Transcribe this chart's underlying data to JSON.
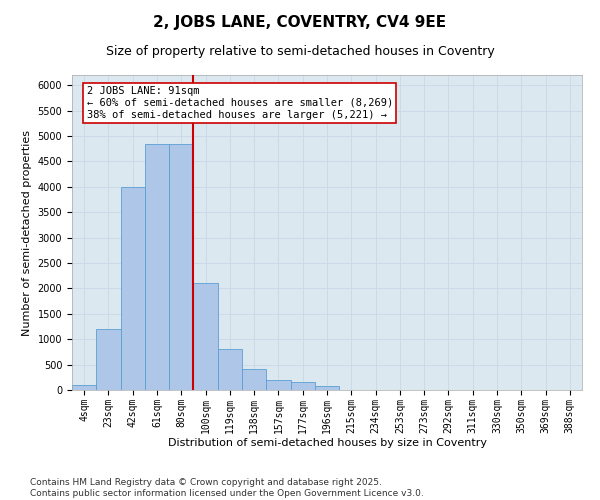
{
  "title": "2, JOBS LANE, COVENTRY, CV4 9EE",
  "subtitle": "Size of property relative to semi-detached houses in Coventry",
  "xlabel": "Distribution of semi-detached houses by size in Coventry",
  "ylabel": "Number of semi-detached properties",
  "bar_labels": [
    "4sqm",
    "23sqm",
    "42sqm",
    "61sqm",
    "80sqm",
    "100sqm",
    "119sqm",
    "138sqm",
    "157sqm",
    "177sqm",
    "196sqm",
    "215sqm",
    "234sqm",
    "253sqm",
    "273sqm",
    "292sqm",
    "311sqm",
    "330sqm",
    "350sqm",
    "369sqm",
    "388sqm"
  ],
  "bar_values": [
    100,
    1200,
    4000,
    4850,
    4850,
    2100,
    800,
    420,
    200,
    150,
    80,
    0,
    0,
    0,
    0,
    0,
    0,
    0,
    0,
    0,
    0
  ],
  "bar_color": "#aec6e8",
  "bar_edgecolor": "#5a9fd4",
  "vline_x_index": 4.5,
  "annotation_text": "2 JOBS LANE: 91sqm\n← 60% of semi-detached houses are smaller (8,269)\n38% of semi-detached houses are larger (5,221) →",
  "annotation_box_color": "#ffffff",
  "annotation_box_edgecolor": "#cc0000",
  "vline_color": "#cc0000",
  "ylim": [
    0,
    6200
  ],
  "yticks": [
    0,
    500,
    1000,
    1500,
    2000,
    2500,
    3000,
    3500,
    4000,
    4500,
    5000,
    5500,
    6000
  ],
  "grid_color": "#c8d8e8",
  "background_color": "#dce8f0",
  "footer_line1": "Contains HM Land Registry data © Crown copyright and database right 2025.",
  "footer_line2": "Contains public sector information licensed under the Open Government Licence v3.0.",
  "title_fontsize": 11,
  "subtitle_fontsize": 9,
  "axis_label_fontsize": 8,
  "tick_fontsize": 7,
  "annotation_fontsize": 7.5,
  "footer_fontsize": 6.5
}
